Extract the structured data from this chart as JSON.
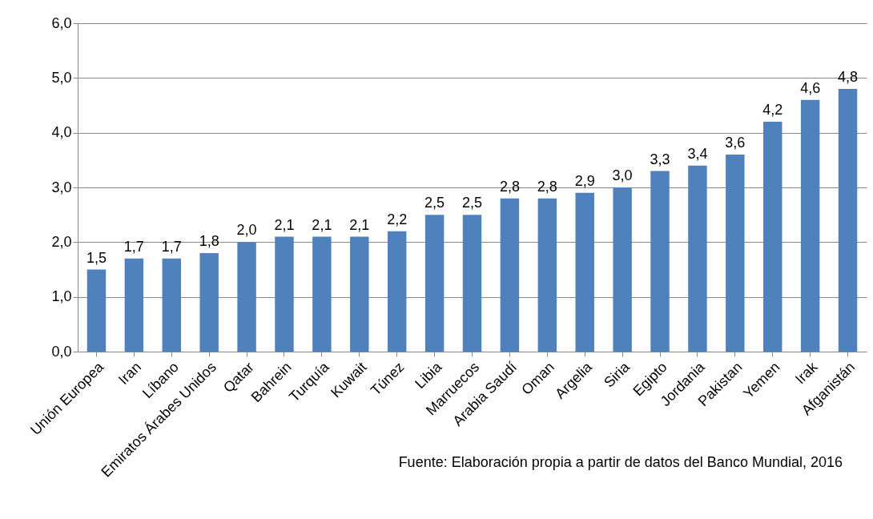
{
  "chart_data": {
    "type": "bar",
    "categories": [
      "Unión Europea",
      "Iran",
      "Líbano",
      "Emiratos Árabes Unidos",
      "Qatar",
      "Bahrein",
      "Turquía",
      "Kuwait",
      "Túnez",
      "Libia",
      "Marruecos",
      "Arabia Saudí",
      "Oman",
      "Argelia",
      "Siria",
      "Egipto",
      "Jordania",
      "Pakistan",
      "Yemen",
      "Irak",
      "Afganistán"
    ],
    "values": [
      1.5,
      1.7,
      1.7,
      1.8,
      2.0,
      2.1,
      2.1,
      2.1,
      2.2,
      2.5,
      2.5,
      2.8,
      2.8,
      2.9,
      3.0,
      3.3,
      3.4,
      3.6,
      4.2,
      4.6,
      4.8
    ],
    "value_labels": [
      "1,5",
      "1,7",
      "1,7",
      "1,8",
      "2,0",
      "2,1",
      "2,1",
      "2,1",
      "2,2",
      "2,5",
      "2,5",
      "2,8",
      "2,8",
      "2,9",
      "3,0",
      "3,3",
      "3,4",
      "3,6",
      "4,2",
      "4,6",
      "4,8"
    ],
    "color": "#4f81bd",
    "ylim": [
      0,
      6
    ],
    "yticks": [
      {
        "value": 0,
        "label": "0,0"
      },
      {
        "value": 1,
        "label": "1,0"
      },
      {
        "value": 2,
        "label": "2,0"
      },
      {
        "value": 3,
        "label": "3,0"
      },
      {
        "value": 4,
        "label": "4,0"
      },
      {
        "value": 5,
        "label": "5,0"
      },
      {
        "value": 6,
        "label": "6,0"
      }
    ],
    "grid": "y",
    "annotations": [
      "Fuente: Elaboración propia a partir de datos del Banco Mundial, 2016"
    ]
  }
}
